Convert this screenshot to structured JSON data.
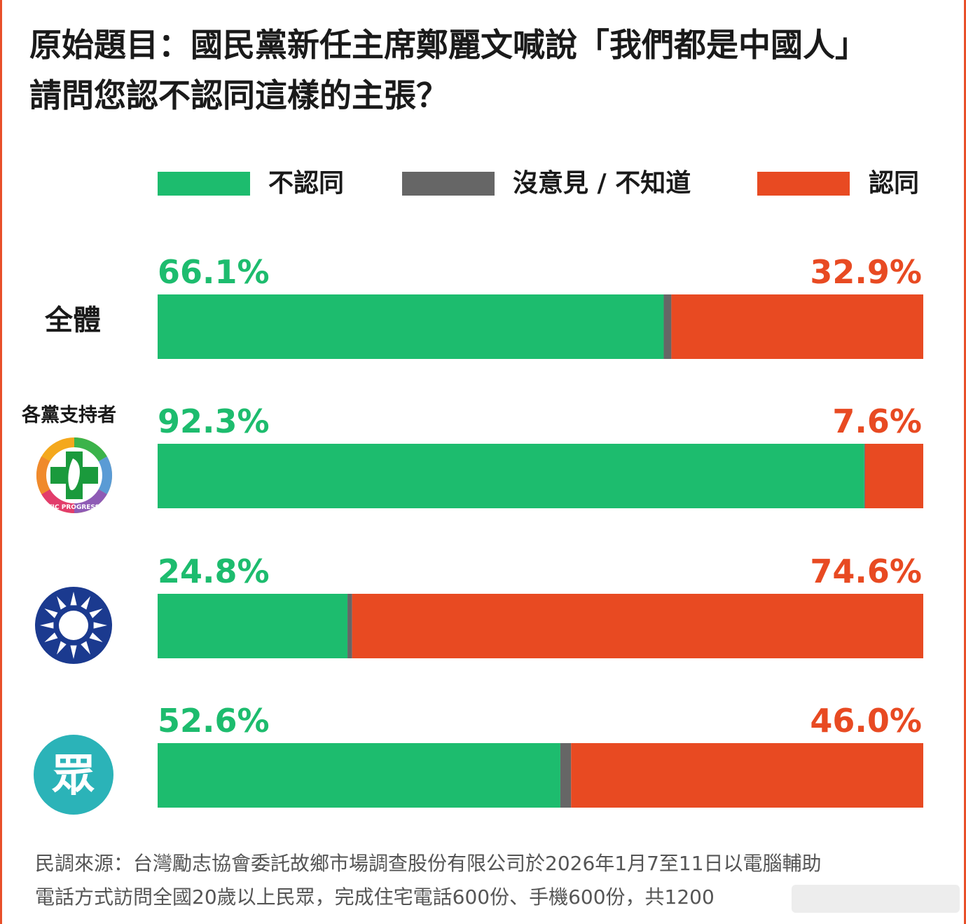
{
  "title": {
    "line1": "原始題目：國民黨新任主席鄭麗文喊說「我們都是中國人」",
    "line2": "請問您認不認同這樣的主張？"
  },
  "colors": {
    "disagree": "#1dbc6e",
    "neutral": "#666666",
    "agree": "#e84a22",
    "dpp_green": "#1a9a3c",
    "kmt_blue": "#1b3a8f",
    "tpp_teal": "#2bb3b8"
  },
  "legend": [
    {
      "label": "不認同",
      "color": "#1dbc6e"
    },
    {
      "label": "沒意見 / 不知道",
      "color": "#666666"
    },
    {
      "label": "認同",
      "color": "#e84a22"
    }
  ],
  "group_header": "各黨支持者",
  "rows": {
    "overall_label": "全體",
    "dpp_icon": "dpp-logo-icon",
    "dpp_logo_text": "DEMOCRATIC PROGRESSIVE PARTY",
    "kmt_icon": "kmt-emblem-icon",
    "tpp_icon": "tpp-logo-icon",
    "tpp_char": "眾"
  },
  "chart_data": {
    "type": "bar",
    "orientation": "horizontal-stacked",
    "title": "原始題目：國民黨新任主席鄭麗文喊說「我們都是中國人」請問您認不認同這樣的主張？",
    "categories": [
      "全體",
      "民進黨支持者",
      "國民黨支持者",
      "民眾黨支持者"
    ],
    "series": [
      {
        "name": "不認同",
        "values": [
          66.1,
          92.3,
          24.8,
          52.6
        ]
      },
      {
        "name": "沒意見 / 不知道",
        "values": [
          1.0,
          0.1,
          0.6,
          1.4
        ]
      },
      {
        "name": "認同",
        "values": [
          32.9,
          7.6,
          74.6,
          46.0
        ]
      }
    ],
    "labels_disagree": [
      "66.1%",
      "92.3%",
      "24.8%",
      "52.6%"
    ],
    "labels_agree": [
      "32.9%",
      "7.6%",
      "74.6%",
      "46.0%"
    ],
    "xlim": [
      0,
      100
    ],
    "legend": "top"
  },
  "footer": {
    "line1": "民調來源：台灣勵志協會委託故鄉市場調查股份有限公司於2026年1月7至11日以電腦輔助",
    "line2": "電話方式訪問全國20歲以上民眾，完成住宅電話600份、手機600份，共1200"
  }
}
